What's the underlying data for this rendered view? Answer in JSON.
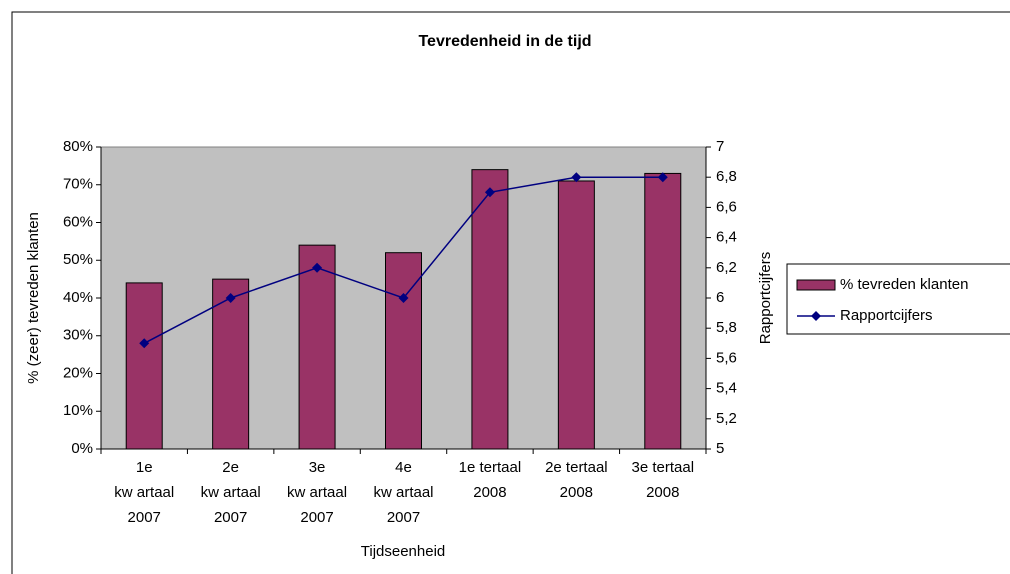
{
  "chart_data": {
    "type": "bar_line",
    "title": "Tevredenheid in de tijd",
    "x_label": "Tijdseenheid",
    "y_label": "% (zeer) tevreden klanten",
    "y2_label": "Rapportcijfers",
    "categories": [
      [
        "1e",
        "kw artaal",
        "2007"
      ],
      [
        "2e",
        "kw artaal",
        "2007"
      ],
      [
        "3e",
        "kw artaal",
        "2007"
      ],
      [
        "4e",
        "kw artaal",
        "2007"
      ],
      [
        "1e tertaal",
        "2008"
      ],
      [
        "2e tertaal",
        "2008"
      ],
      [
        "3e tertaal",
        "2008"
      ]
    ],
    "series": [
      {
        "name": "% tevreden klanten",
        "type": "bar",
        "color": "#993366",
        "values": [
          44,
          45,
          54,
          52,
          74,
          71,
          73
        ]
      },
      {
        "name": "Rapportcijfers",
        "type": "line",
        "axis": "y2",
        "color": "#000080",
        "values": [
          5.7,
          6.0,
          6.2,
          6.0,
          6.7,
          6.8,
          6.8
        ]
      }
    ],
    "ylim": [
      0,
      80
    ],
    "yticks": [
      {
        "value": 0,
        "label": "0%"
      },
      {
        "value": 10,
        "label": "10%"
      },
      {
        "value": 20,
        "label": "20%"
      },
      {
        "value": 30,
        "label": "30%"
      },
      {
        "value": 40,
        "label": "40%"
      },
      {
        "value": 50,
        "label": "50%"
      },
      {
        "value": 60,
        "label": "60%"
      },
      {
        "value": 70,
        "label": "70%"
      },
      {
        "value": 80,
        "label": "80%"
      }
    ],
    "y2lim": [
      5,
      7
    ],
    "y2ticks": [
      5,
      {
        "value": 5.2,
        "label": "5,2"
      },
      {
        "value": 5.4,
        "label": "5,4"
      },
      {
        "value": 5.6,
        "label": "5,6"
      },
      {
        "value": 5.8,
        "label": "5,8"
      },
      6,
      {
        "value": 6.2,
        "label": "6,2"
      },
      {
        "value": 6.4,
        "label": "6,4"
      },
      {
        "value": 6.6,
        "label": "6,6"
      },
      {
        "value": 6.8,
        "label": "6,8"
      },
      7
    ],
    "plot_background": "#c0c0c0",
    "grid": false,
    "legend": "right"
  }
}
